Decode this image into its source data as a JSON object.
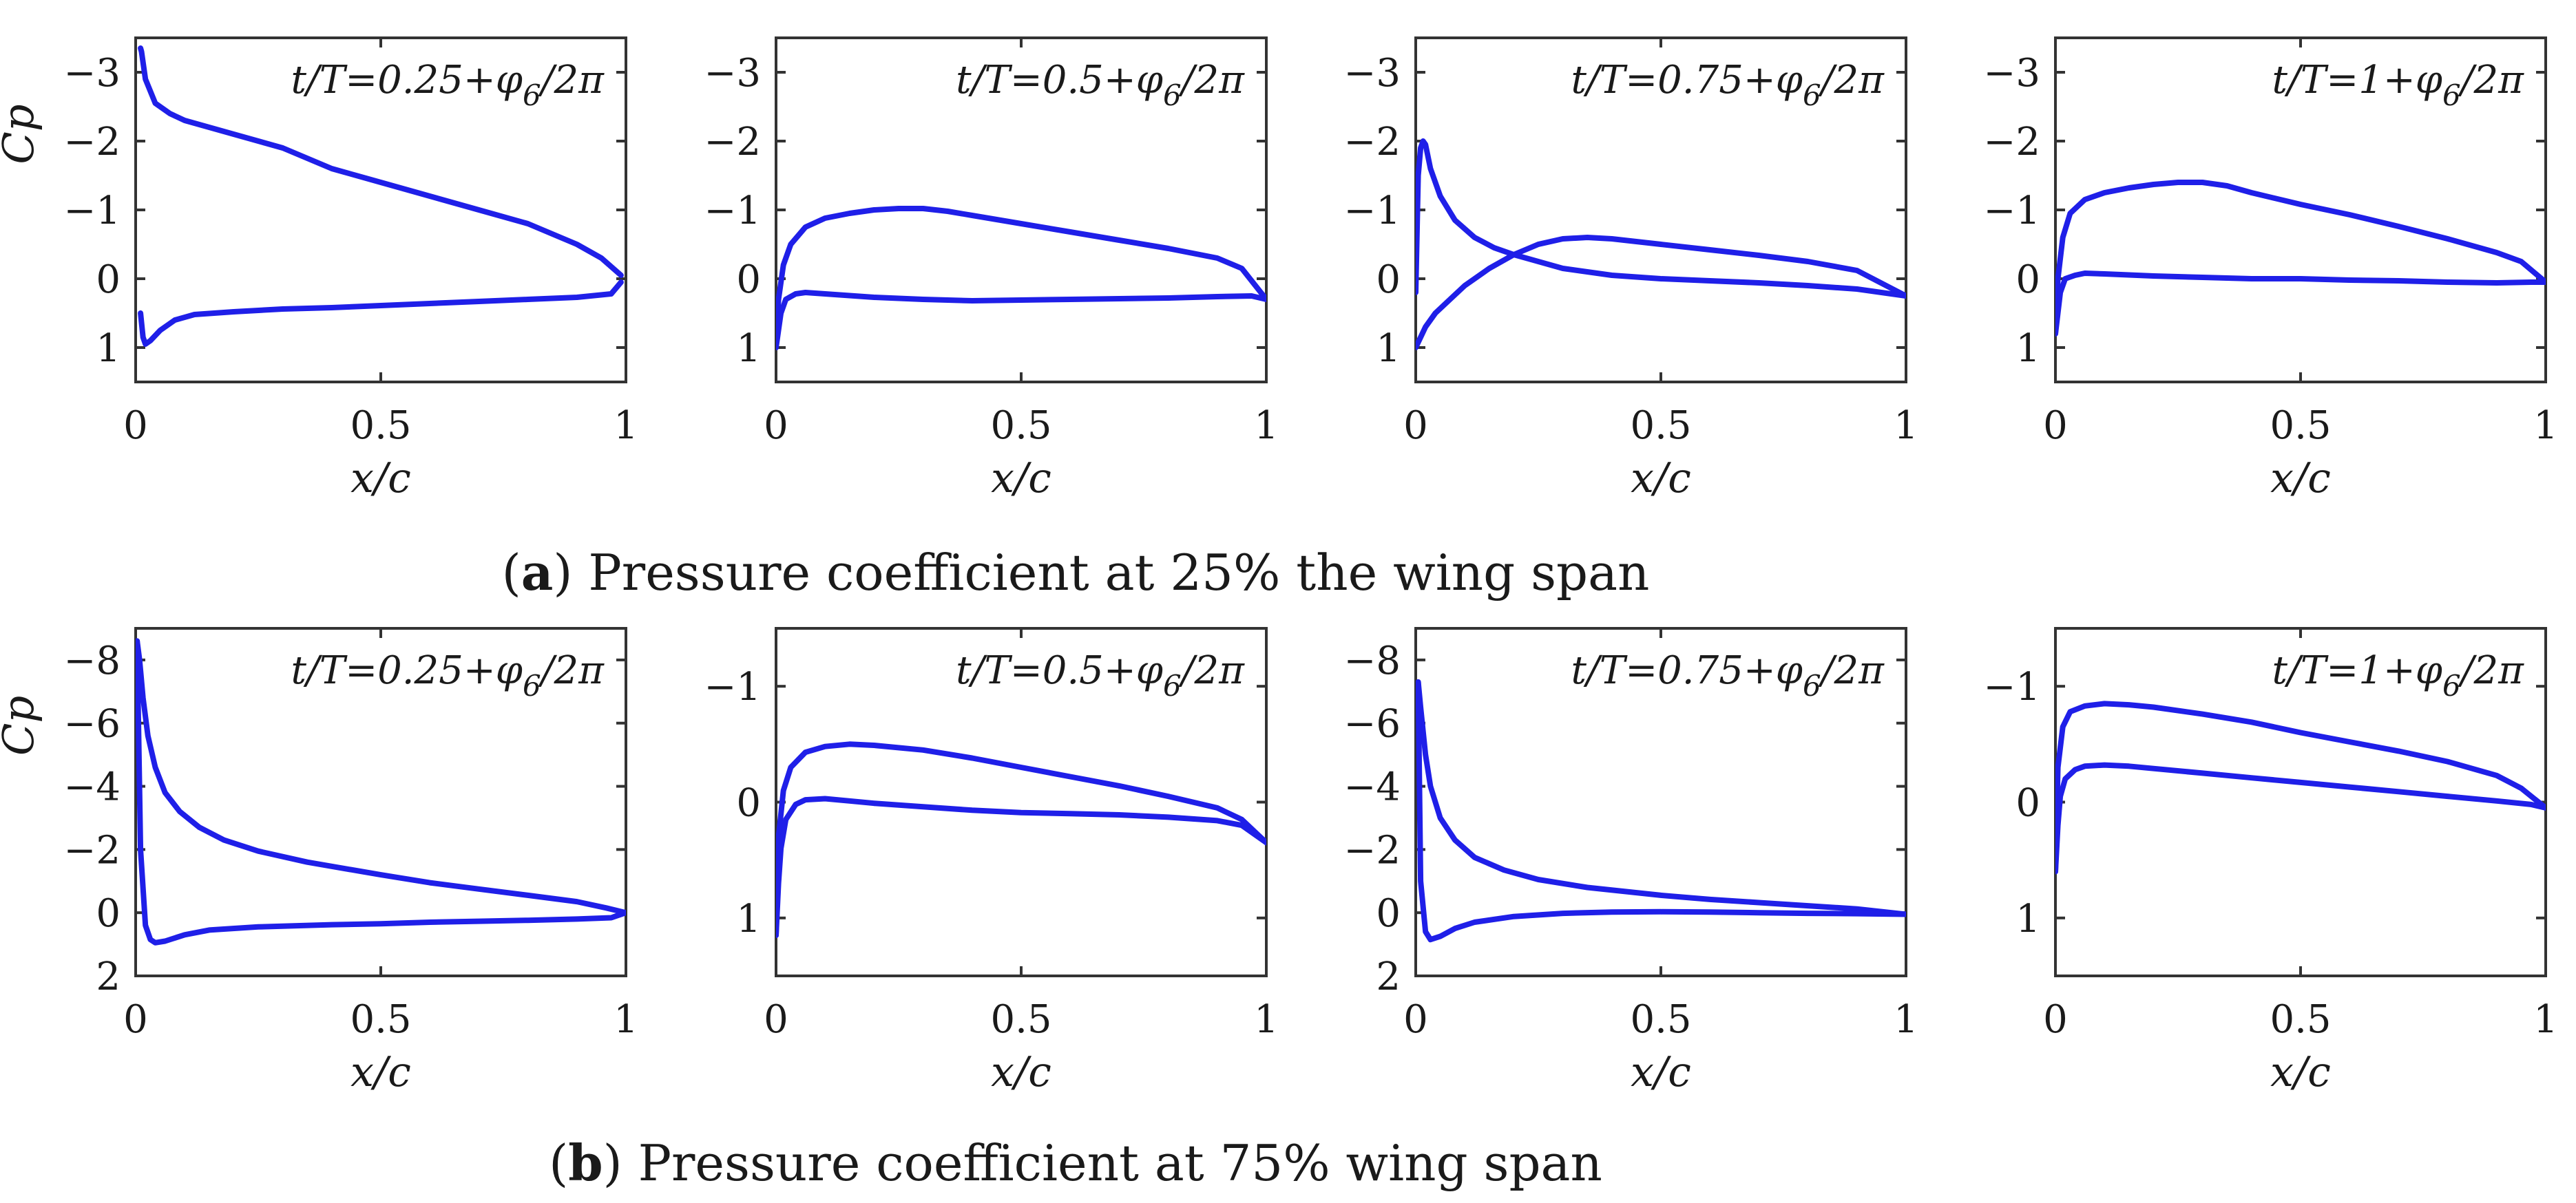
{
  "captions": {
    "a": {
      "letter": "a",
      "text": "Pressure coefficient at 25% the wing span"
    },
    "b": {
      "letter": "b",
      "text": "Pressure coefficient at 75% wing span"
    }
  },
  "colors": {
    "curve": "#1f1fe8",
    "axes": "#333333",
    "text": "#1a1a1a"
  },
  "chart_data": [
    {
      "id": "a1",
      "type": "line",
      "row": "a",
      "annotation": {
        "base": "t/T=0.25+φ",
        "sub": "6",
        "tail": "/2π"
      },
      "xlabel": "x/c",
      "ylabel": "Cp",
      "y_inverted": true,
      "xlim": [
        0,
        1
      ],
      "ylim": [
        -3.5,
        1.5
      ],
      "xticks": [
        0,
        0.5,
        1
      ],
      "xtick_labels": [
        "0",
        "0.5",
        "1"
      ],
      "yticks": [
        -3,
        -2,
        -1,
        0,
        1
      ],
      "ytick_labels": [
        "−3",
        "−2",
        "−1",
        "0",
        "1"
      ],
      "series": [
        {
          "name": "upper",
          "x": [
            0.01,
            0.012,
            0.02,
            0.04,
            0.07,
            0.1,
            0.15,
            0.2,
            0.3,
            0.4,
            0.5,
            0.6,
            0.7,
            0.8,
            0.9,
            0.95,
            0.99
          ],
          "y": [
            -3.35,
            -3.3,
            -2.9,
            -2.55,
            -2.4,
            -2.3,
            -2.2,
            -2.1,
            -1.9,
            -1.6,
            -1.4,
            -1.2,
            -1.0,
            -0.8,
            -0.5,
            -0.3,
            -0.05
          ]
        },
        {
          "name": "lower",
          "x": [
            0.01,
            0.015,
            0.02,
            0.03,
            0.05,
            0.08,
            0.12,
            0.2,
            0.3,
            0.4,
            0.5,
            0.6,
            0.7,
            0.8,
            0.9,
            0.97,
            0.99
          ],
          "y": [
            0.5,
            0.85,
            0.95,
            0.9,
            0.75,
            0.6,
            0.52,
            0.48,
            0.44,
            0.42,
            0.39,
            0.36,
            0.33,
            0.3,
            0.27,
            0.22,
            0.05
          ]
        }
      ]
    },
    {
      "id": "a2",
      "type": "line",
      "row": "a",
      "annotation": {
        "base": "t/T=0.5+φ",
        "sub": "6",
        "tail": "/2π"
      },
      "xlabel": "x/c",
      "ylabel": "",
      "y_inverted": true,
      "xlim": [
        0,
        1
      ],
      "ylim": [
        -3.5,
        1.5
      ],
      "xticks": [
        0,
        0.5,
        1
      ],
      "xtick_labels": [
        "0",
        "0.5",
        "1"
      ],
      "yticks": [
        -3,
        -2,
        -1,
        0,
        1
      ],
      "ytick_labels": [
        "−3",
        "−2",
        "−1",
        "0",
        "1"
      ],
      "series": [
        {
          "name": "upper",
          "x": [
            0.0,
            0.005,
            0.015,
            0.03,
            0.06,
            0.1,
            0.15,
            0.2,
            0.25,
            0.3,
            0.35,
            0.4,
            0.5,
            0.6,
            0.7,
            0.8,
            0.9,
            0.95,
            1.0
          ],
          "y": [
            1.0,
            0.3,
            -0.2,
            -0.5,
            -0.75,
            -0.88,
            -0.95,
            -1.0,
            -1.02,
            -1.02,
            -0.98,
            -0.92,
            -0.8,
            -0.68,
            -0.56,
            -0.44,
            -0.3,
            -0.15,
            0.3
          ]
        },
        {
          "name": "lower",
          "x": [
            0.0,
            0.01,
            0.02,
            0.04,
            0.06,
            0.1,
            0.2,
            0.3,
            0.4,
            0.5,
            0.6,
            0.7,
            0.8,
            0.9,
            0.97,
            1.0
          ],
          "y": [
            1.0,
            0.5,
            0.3,
            0.22,
            0.2,
            0.22,
            0.27,
            0.3,
            0.32,
            0.31,
            0.3,
            0.29,
            0.28,
            0.26,
            0.25,
            0.3
          ]
        }
      ]
    },
    {
      "id": "a3",
      "type": "line",
      "row": "a",
      "annotation": {
        "base": "t/T=0.75+φ",
        "sub": "6",
        "tail": "/2π"
      },
      "xlabel": "x/c",
      "ylabel": "",
      "y_inverted": true,
      "xlim": [
        0,
        1
      ],
      "ylim": [
        -3.5,
        1.5
      ],
      "xticks": [
        0,
        0.5,
        1
      ],
      "xtick_labels": [
        "0",
        "0.5",
        "1"
      ],
      "yticks": [
        -3,
        -2,
        -1,
        0,
        1
      ],
      "ytick_labels": [
        "−3",
        "−2",
        "−1",
        "0",
        "1"
      ],
      "series": [
        {
          "name": "upper",
          "x": [
            0.0,
            0.005,
            0.01,
            0.015,
            0.02,
            0.03,
            0.05,
            0.08,
            0.12,
            0.16,
            0.2,
            0.3,
            0.4,
            0.5,
            0.6,
            0.7,
            0.8,
            0.9,
            1.0
          ],
          "y": [
            0.2,
            -1.5,
            -1.9,
            -2.0,
            -1.95,
            -1.6,
            -1.2,
            -0.85,
            -0.6,
            -0.45,
            -0.35,
            -0.15,
            -0.05,
            0.0,
            0.03,
            0.06,
            0.1,
            0.15,
            0.25
          ]
        },
        {
          "name": "lower",
          "x": [
            0.0,
            0.01,
            0.02,
            0.04,
            0.07,
            0.1,
            0.15,
            0.2,
            0.25,
            0.3,
            0.35,
            0.4,
            0.5,
            0.6,
            0.7,
            0.8,
            0.9,
            1.0
          ],
          "y": [
            1.0,
            0.85,
            0.7,
            0.5,
            0.3,
            0.1,
            -0.15,
            -0.35,
            -0.5,
            -0.58,
            -0.6,
            -0.58,
            -0.5,
            -0.42,
            -0.34,
            -0.25,
            -0.12,
            0.25
          ]
        }
      ]
    },
    {
      "id": "a4",
      "type": "line",
      "row": "a",
      "annotation": {
        "base": "t/T=1+φ",
        "sub": "6",
        "tail": "/2π"
      },
      "xlabel": "x/c",
      "ylabel": "",
      "y_inverted": true,
      "xlim": [
        0,
        1
      ],
      "ylim": [
        -3.5,
        1.5
      ],
      "xticks": [
        0,
        0.5,
        1
      ],
      "xtick_labels": [
        "0",
        "0.5",
        "1"
      ],
      "yticks": [
        -3,
        -2,
        -1,
        0,
        1
      ],
      "ytick_labels": [
        "−3",
        "−2",
        "−1",
        "0",
        "1"
      ],
      "series": [
        {
          "name": "upper",
          "x": [
            0.0,
            0.005,
            0.015,
            0.03,
            0.06,
            0.1,
            0.15,
            0.2,
            0.25,
            0.3,
            0.35,
            0.4,
            0.5,
            0.6,
            0.7,
            0.8,
            0.9,
            0.95,
            1.0
          ],
          "y": [
            0.8,
            0.0,
            -0.6,
            -0.95,
            -1.15,
            -1.25,
            -1.32,
            -1.37,
            -1.4,
            -1.4,
            -1.35,
            -1.25,
            -1.08,
            -0.93,
            -0.76,
            -0.58,
            -0.38,
            -0.25,
            0.05
          ]
        },
        {
          "name": "lower",
          "x": [
            0.0,
            0.01,
            0.02,
            0.04,
            0.06,
            0.1,
            0.2,
            0.3,
            0.4,
            0.5,
            0.6,
            0.7,
            0.8,
            0.9,
            0.97,
            1.0
          ],
          "y": [
            0.8,
            0.2,
            0.0,
            -0.05,
            -0.08,
            -0.07,
            -0.04,
            -0.02,
            0.0,
            0.0,
            0.02,
            0.03,
            0.05,
            0.06,
            0.05,
            0.05
          ]
        }
      ]
    },
    {
      "id": "b1",
      "type": "line",
      "row": "b",
      "annotation": {
        "base": "t/T=0.25+φ",
        "sub": "6",
        "tail": "/2π"
      },
      "xlabel": "x/c",
      "ylabel": "Cp",
      "y_inverted": true,
      "xlim": [
        0,
        1
      ],
      "ylim": [
        -9,
        2
      ],
      "xticks": [
        0,
        0.5,
        1
      ],
      "xtick_labels": [
        "0",
        "0.5",
        "1"
      ],
      "yticks": [
        -8,
        -6,
        -4,
        -2,
        0,
        2
      ],
      "ytick_labels": [
        "−8",
        "−6",
        "−4",
        "−2",
        "0",
        "2"
      ],
      "series": [
        {
          "name": "upper",
          "x": [
            0.003,
            0.008,
            0.015,
            0.025,
            0.04,
            0.06,
            0.09,
            0.13,
            0.18,
            0.25,
            0.35,
            0.5,
            0.6,
            0.7,
            0.8,
            0.9,
            0.96,
            1.0
          ],
          "y": [
            -8.6,
            -8.0,
            -6.8,
            -5.6,
            -4.6,
            -3.8,
            -3.2,
            -2.7,
            -2.3,
            -1.95,
            -1.6,
            -1.2,
            -0.95,
            -0.75,
            -0.55,
            -0.35,
            -0.15,
            0.0
          ]
        },
        {
          "name": "lower",
          "x": [
            0.003,
            0.01,
            0.02,
            0.03,
            0.04,
            0.06,
            0.1,
            0.15,
            0.25,
            0.4,
            0.5,
            0.6,
            0.7,
            0.8,
            0.9,
            0.97,
            1.0
          ],
          "y": [
            -8.6,
            -2.0,
            0.4,
            0.85,
            0.95,
            0.9,
            0.7,
            0.55,
            0.45,
            0.38,
            0.35,
            0.3,
            0.27,
            0.24,
            0.2,
            0.16,
            0.0
          ]
        }
      ]
    },
    {
      "id": "b2",
      "type": "line",
      "row": "b",
      "annotation": {
        "base": "t/T=0.5+φ",
        "sub": "6",
        "tail": "/2π"
      },
      "xlabel": "x/c",
      "ylabel": "",
      "y_inverted": true,
      "xlim": [
        0,
        1
      ],
      "ylim": [
        -1.5,
        1.5
      ],
      "xticks": [
        0,
        0.5,
        1
      ],
      "xtick_labels": [
        "0",
        "0.5",
        "1"
      ],
      "yticks": [
        -1,
        0,
        1
      ],
      "ytick_labels": [
        "−1",
        "0",
        "1"
      ],
      "series": [
        {
          "name": "upper",
          "x": [
            0.0,
            0.005,
            0.015,
            0.03,
            0.06,
            0.1,
            0.15,
            0.2,
            0.3,
            0.4,
            0.5,
            0.6,
            0.7,
            0.8,
            0.9,
            0.95,
            1.0
          ],
          "y": [
            1.15,
            0.3,
            -0.1,
            -0.3,
            -0.43,
            -0.48,
            -0.5,
            -0.49,
            -0.45,
            -0.38,
            -0.3,
            -0.22,
            -0.14,
            -0.05,
            0.05,
            0.15,
            0.35
          ]
        },
        {
          "name": "lower",
          "x": [
            0.0,
            0.005,
            0.01,
            0.02,
            0.04,
            0.06,
            0.1,
            0.15,
            0.2,
            0.3,
            0.4,
            0.5,
            0.6,
            0.7,
            0.8,
            0.9,
            0.95,
            1.0
          ],
          "y": [
            1.15,
            0.7,
            0.4,
            0.15,
            0.02,
            -0.02,
            -0.03,
            -0.01,
            0.01,
            0.04,
            0.07,
            0.09,
            0.1,
            0.11,
            0.13,
            0.16,
            0.2,
            0.35
          ]
        }
      ]
    },
    {
      "id": "b3",
      "type": "line",
      "row": "b",
      "annotation": {
        "base": "t/T=0.75+φ",
        "sub": "6",
        "tail": "/2π"
      },
      "xlabel": "x/c",
      "ylabel": "",
      "y_inverted": true,
      "xlim": [
        0,
        1
      ],
      "ylim": [
        -9,
        2
      ],
      "xticks": [
        0,
        0.5,
        1
      ],
      "xtick_labels": [
        "0",
        "0.5",
        "1"
      ],
      "yticks": [
        -8,
        -6,
        -4,
        -2,
        0,
        2
      ],
      "ytick_labels": [
        "−8",
        "−6",
        "−4",
        "−2",
        "0",
        "2"
      ],
      "series": [
        {
          "name": "upper",
          "x": [
            0.005,
            0.01,
            0.02,
            0.03,
            0.05,
            0.08,
            0.12,
            0.18,
            0.25,
            0.35,
            0.5,
            0.6,
            0.7,
            0.8,
            0.9,
            1.0
          ],
          "y": [
            -7.3,
            -6.5,
            -5.0,
            -4.0,
            -3.0,
            -2.3,
            -1.75,
            -1.35,
            -1.05,
            -0.8,
            -0.55,
            -0.42,
            -0.32,
            -0.22,
            -0.12,
            0.05
          ]
        },
        {
          "name": "lower",
          "x": [
            0.005,
            0.01,
            0.02,
            0.03,
            0.05,
            0.08,
            0.12,
            0.2,
            0.3,
            0.4,
            0.5,
            0.6,
            0.7,
            0.8,
            0.9,
            1.0
          ],
          "y": [
            -7.3,
            -1.0,
            0.6,
            0.85,
            0.75,
            0.5,
            0.3,
            0.12,
            0.02,
            -0.02,
            -0.03,
            -0.02,
            0.0,
            0.02,
            0.03,
            0.05
          ]
        }
      ]
    },
    {
      "id": "b4",
      "type": "line",
      "row": "b",
      "annotation": {
        "base": "t/T=1+φ",
        "sub": "6",
        "tail": "/2π"
      },
      "xlabel": "x/c",
      "ylabel": "",
      "y_inverted": true,
      "xlim": [
        0,
        1
      ],
      "ylim": [
        -1.5,
        1.5
      ],
      "xticks": [
        0,
        0.5,
        1
      ],
      "xtick_labels": [
        "0",
        "0.5",
        "1"
      ],
      "yticks": [
        -1,
        0,
        1
      ],
      "ytick_labels": [
        "−1",
        "0",
        "1"
      ],
      "series": [
        {
          "name": "upper",
          "x": [
            0.0,
            0.005,
            0.015,
            0.03,
            0.06,
            0.1,
            0.15,
            0.2,
            0.3,
            0.4,
            0.5,
            0.6,
            0.7,
            0.8,
            0.9,
            0.95,
            1.0
          ],
          "y": [
            0.6,
            -0.3,
            -0.65,
            -0.78,
            -0.83,
            -0.85,
            -0.84,
            -0.82,
            -0.76,
            -0.69,
            -0.6,
            -0.52,
            -0.44,
            -0.35,
            -0.23,
            -0.12,
            0.05
          ]
        },
        {
          "name": "lower",
          "x": [
            0.0,
            0.005,
            0.01,
            0.02,
            0.04,
            0.06,
            0.1,
            0.15,
            0.2,
            0.3,
            0.4,
            0.5,
            0.6,
            0.7,
            0.8,
            0.9,
            0.97,
            1.0
          ],
          "y": [
            0.6,
            0.2,
            -0.05,
            -0.2,
            -0.28,
            -0.31,
            -0.32,
            -0.31,
            -0.29,
            -0.25,
            -0.21,
            -0.17,
            -0.13,
            -0.09,
            -0.05,
            -0.01,
            0.02,
            0.05
          ]
        }
      ]
    }
  ]
}
